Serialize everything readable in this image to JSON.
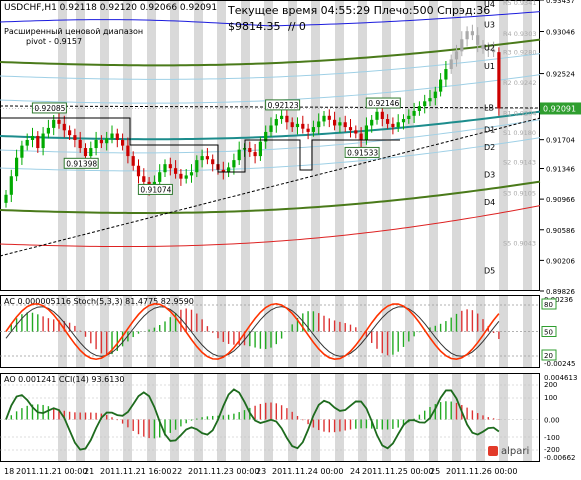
{
  "chart_header": {
    "symbol_line": "USDCHF,H1  0.92118 0.92120 0.92066 0.92091",
    "subtitle1": "Расширенный ценовой диапазон",
    "subtitle2": "pivot - 0.9157",
    "info_line": "Текущее время 04:55:29 Плечо:500 Спрэд:36",
    "balance": "$9814.35",
    "balance_suffix": "// 0"
  },
  "chart_data": [
    {
      "type": "line",
      "name": "main",
      "ylim": [
        0.89826,
        0.93437
      ],
      "price_axis_labels": [
        "0.93437",
        "0.93046",
        "0.92091",
        "0.92524",
        "0.91704",
        "0.91346",
        "0.90966",
        "0.90586",
        "0.90206",
        "0.89826"
      ],
      "current_price": "0.92091",
      "level_tags": [
        {
          "label": "U4",
          "price": 0.9339
        },
        {
          "label": "R5 0.9341",
          "price": 0.9341
        },
        {
          "label": "U3",
          "price": 0.9313
        },
        {
          "label": "R4 0.9303",
          "price": 0.9303
        },
        {
          "label": "U2",
          "price": 0.9285
        },
        {
          "label": "R3 0.9280",
          "price": 0.928
        },
        {
          "label": "U1",
          "price": 0.9262
        },
        {
          "label": "R2 0.9242",
          "price": 0.9242
        },
        {
          "label": "LB",
          "price": 0.921
        },
        {
          "label": "R1 0.9204",
          "price": 0.9204
        },
        {
          "label": "D1",
          "price": 0.9183
        },
        {
          "label": "S1 0.9180",
          "price": 0.918
        },
        {
          "label": "D2",
          "price": 0.9161
        },
        {
          "label": "S2 0.9143",
          "price": 0.9143
        },
        {
          "label": "D3",
          "price": 0.9127
        },
        {
          "label": "S3 0.9105",
          "price": 0.9105
        },
        {
          "label": "D4",
          "price": 0.9093
        },
        {
          "label": "S5 0.9043",
          "price": 0.9043
        },
        {
          "label": "D5",
          "price": 0.9008
        }
      ],
      "annotations": [
        {
          "text": "0.92085",
          "index": 8,
          "price": 0.92085
        },
        {
          "text": "0.91398",
          "index": 14,
          "price": 0.91398
        },
        {
          "text": "0.91074",
          "index": 28,
          "price": 0.91074
        },
        {
          "text": "0.92123",
          "index": 52,
          "price": 0.92123
        },
        {
          "text": "0.92146",
          "index": 71,
          "price": 0.92146
        },
        {
          "text": "0.91533",
          "index": 67,
          "price": 0.91533
        }
      ],
      "closes": [
        0.9102,
        0.9125,
        0.9148,
        0.9163,
        0.917,
        0.9175,
        0.916,
        0.9178,
        0.9185,
        0.9195,
        0.919,
        0.9182,
        0.9176,
        0.917,
        0.916,
        0.915,
        0.916,
        0.917,
        0.9166,
        0.9172,
        0.9178,
        0.917,
        0.9163,
        0.915,
        0.9138,
        0.9125,
        0.9118,
        0.911,
        0.9118,
        0.913,
        0.914,
        0.9135,
        0.9128,
        0.9122,
        0.9126,
        0.913,
        0.9145,
        0.915,
        0.9146,
        0.914,
        0.9133,
        0.913,
        0.9136,
        0.9145,
        0.9158,
        0.916,
        0.9155,
        0.915,
        0.9168,
        0.918,
        0.9188,
        0.9196,
        0.92,
        0.9192,
        0.9186,
        0.919,
        0.9184,
        0.918,
        0.9186,
        0.9193,
        0.92,
        0.9195,
        0.9188,
        0.9192,
        0.9186,
        0.9182,
        0.9178,
        0.917,
        0.9188,
        0.9195,
        0.9205,
        0.9196,
        0.919,
        0.9186,
        0.9192,
        0.9196,
        0.92,
        0.9206,
        0.9212,
        0.9218,
        0.9222,
        0.923,
        0.9245,
        0.9258,
        0.927,
        0.928,
        0.9295,
        0.9305,
        0.93,
        0.9288,
        0.9283,
        0.9282,
        0.9279,
        0.9209
      ]
    },
    {
      "type": "bar",
      "name": "AC / Stoch",
      "label": "AC 0.000005116  Stoch(5,3,3) 81.4775 82.9590",
      "axis_labels": [
        "0.00236",
        "80",
        "50",
        "20",
        "-0.00245"
      ]
    },
    {
      "type": "bar",
      "name": "AO / CCI",
      "label": "AO 0.001241  CCI(14) 93.6130",
      "axis_labels": [
        "0.004613",
        "200",
        "100",
        "0.00",
        "-100",
        "-200",
        "-0.00662"
      ]
    }
  ],
  "time_axis": [
    "18",
    "2011.11.21 00:00",
    "21",
    "2011.11.21 16:00",
    "22",
    "2011.11.23 00:00",
    "23",
    "2011.11.24 00:00",
    "24",
    "2011.11.25 00:00",
    "25",
    "2011.11.26 00:00"
  ],
  "broker": "alpari",
  "colors": {
    "candle_up": "#00aa00",
    "candle_down": "#cc0000",
    "band_outer": "#4a7a1a",
    "band_blue": "#1c1cdd",
    "band_red": "#dd2222",
    "pivot_teal": "#1c8c8c",
    "price_tag": "#2f9e2f"
  }
}
